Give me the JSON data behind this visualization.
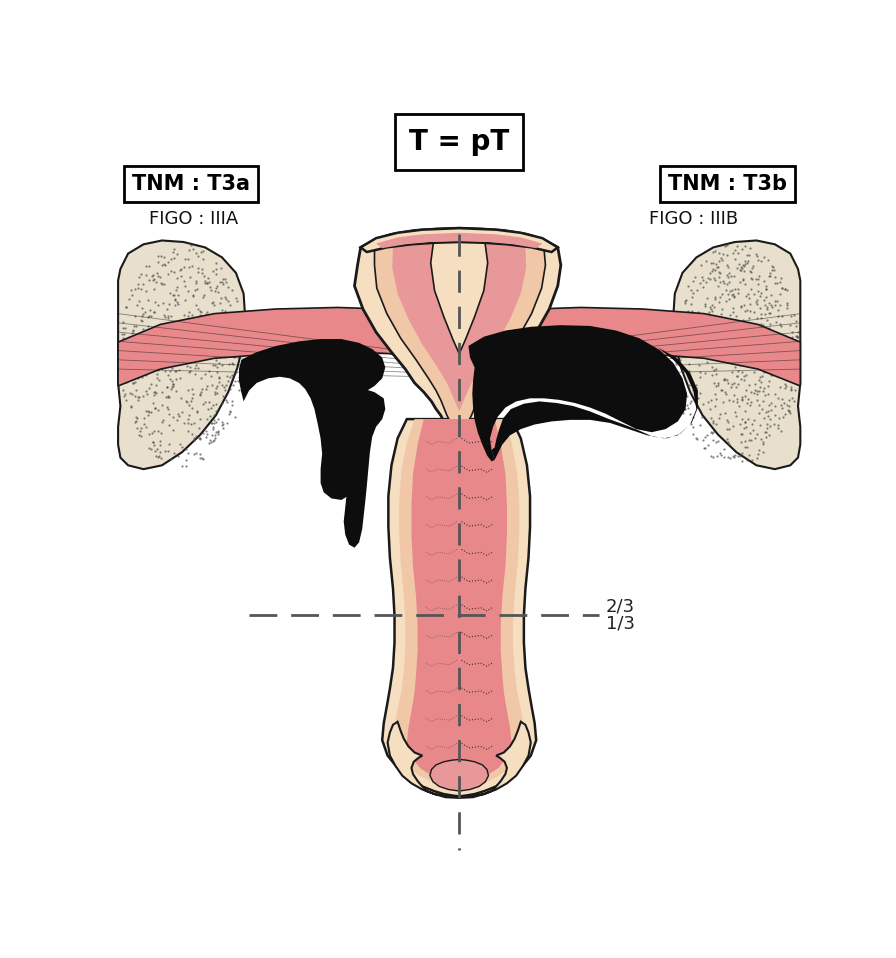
{
  "title": "T = pT",
  "label_tnm_left": "TNM : T3a",
  "label_tnm_right": "TNM : T3b",
  "label_figo_left": "FIGO : IIIA",
  "label_figo_right": "FIGO : IIIB",
  "label_23": "2/3",
  "label_13": "1/3",
  "bg_color": "#ffffff",
  "outline_color": "#1a1a1a",
  "skin_outer": "#f5dfc0",
  "skin_inner": "#f0c8a8",
  "pink_inner": "#e8888a",
  "pink_mid": "#e89898",
  "pelvic_wall_color": "#e8e0cc",
  "muscle_color": "#e8888a",
  "tumor_color": "#0d0d0d",
  "dash_color": "#555555"
}
